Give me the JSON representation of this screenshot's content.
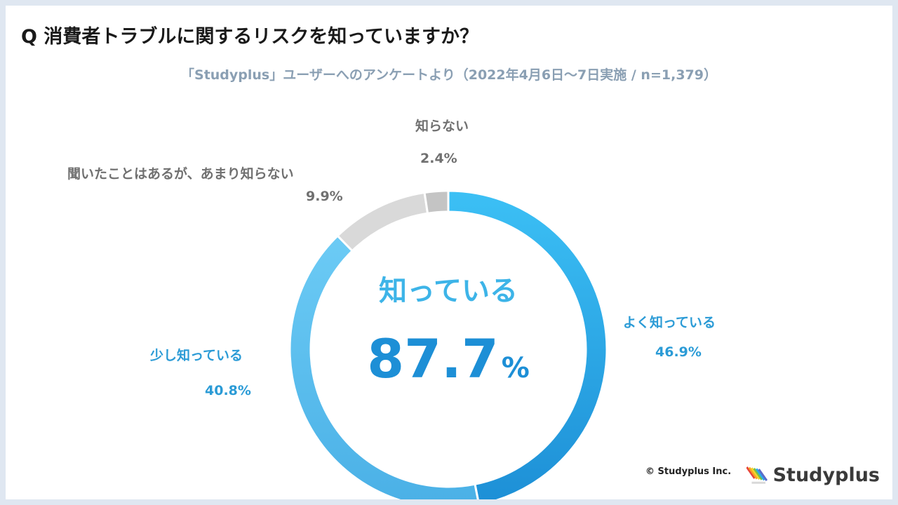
{
  "header": {
    "title": "Q 消費者トラブルに関するリスクを知っていますか？",
    "subtitle": "「Studyplus」ユーザーへのアンケートより（2022年4月6日〜7日実施 / n=1,379）"
  },
  "chart_data": {
    "type": "pie",
    "donut": true,
    "categories": [
      "よく知っている",
      "少し知っている",
      "聞いたことはあるが、あまり知らない",
      "知らない"
    ],
    "values": [
      46.9,
      40.8,
      9.9,
      2.4
    ],
    "value_labels": [
      "46.9%",
      "40.8%",
      "9.9%",
      "2.4%"
    ],
    "unit": "%",
    "colors": [
      "#2aa9ea",
      "#5cc2f2",
      "#d9d9d9",
      "#c4c4c4"
    ],
    "center": {
      "label": "知っている",
      "value": "87.7",
      "unit": "%"
    }
  },
  "footer": {
    "copyright": "© Studyplus Inc.",
    "logo_text": "Studyplus",
    "logo_colors": [
      "#e8443a",
      "#f5a623",
      "#f8d22a",
      "#7cc242",
      "#2aa9ea",
      "#5b6bc9"
    ]
  }
}
